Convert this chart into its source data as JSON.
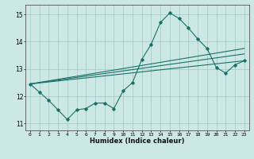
{
  "title": "",
  "xlabel": "Humidex (Indice chaleur)",
  "bg_color": "#cce8e4",
  "grid_color": "#aaccc8",
  "line_color": "#1a7068",
  "spine_color": "#555555",
  "xlim": [
    -0.5,
    23.5
  ],
  "ylim": [
    10.75,
    15.35
  ],
  "xticks": [
    0,
    1,
    2,
    3,
    4,
    5,
    6,
    7,
    8,
    9,
    10,
    11,
    12,
    13,
    14,
    15,
    16,
    17,
    18,
    19,
    20,
    21,
    22,
    23
  ],
  "yticks": [
    11,
    12,
    13,
    14,
    15
  ],
  "main_line_x": [
    0,
    1,
    2,
    3,
    4,
    5,
    6,
    7,
    8,
    9,
    10,
    11,
    12,
    13,
    14,
    15,
    16,
    17,
    18,
    19,
    20,
    21,
    22,
    23
  ],
  "main_line_y": [
    12.45,
    12.15,
    11.85,
    11.5,
    11.15,
    11.5,
    11.55,
    11.75,
    11.75,
    11.55,
    12.2,
    12.5,
    13.35,
    13.9,
    14.7,
    15.05,
    14.85,
    14.5,
    14.1,
    13.75,
    13.05,
    12.85,
    13.15,
    13.3
  ],
  "trend_line1_x": [
    0,
    23
  ],
  "trend_line1_y": [
    12.45,
    13.3
  ],
  "trend_line2_x": [
    0,
    23
  ],
  "trend_line2_y": [
    12.45,
    13.55
  ],
  "trend_line3_x": [
    0,
    23
  ],
  "trend_line3_y": [
    12.45,
    13.75
  ]
}
